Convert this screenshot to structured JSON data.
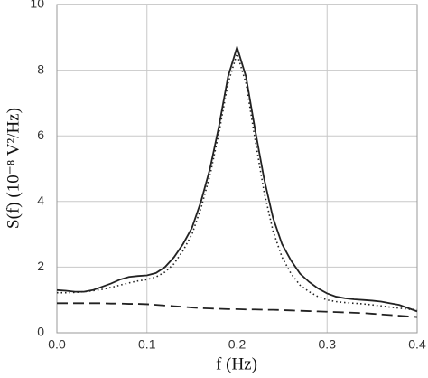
{
  "chart_data": {
    "type": "line",
    "ylabel": "S(f) (10⁻⁸ V²/Hz)",
    "xlabel": "f (Hz)",
    "x": [
      0.0,
      0.01,
      0.02,
      0.03,
      0.04,
      0.05,
      0.06,
      0.07,
      0.08,
      0.09,
      0.1,
      0.11,
      0.12,
      0.13,
      0.14,
      0.15,
      0.16,
      0.17,
      0.18,
      0.19,
      0.2,
      0.21,
      0.22,
      0.23,
      0.24,
      0.25,
      0.26,
      0.27,
      0.28,
      0.29,
      0.3,
      0.31,
      0.32,
      0.33,
      0.34,
      0.35,
      0.36,
      0.37,
      0.38,
      0.39,
      0.4
    ],
    "series": [
      {
        "color": "#222222",
        "dash": "solid",
        "values": [
          1.3,
          1.28,
          1.25,
          1.25,
          1.3,
          1.4,
          1.5,
          1.62,
          1.7,
          1.73,
          1.75,
          1.82,
          2.0,
          2.3,
          2.7,
          3.2,
          4.0,
          5.0,
          6.3,
          7.8,
          8.7,
          7.8,
          6.2,
          4.7,
          3.5,
          2.7,
          2.2,
          1.8,
          1.55,
          1.35,
          1.2,
          1.1,
          1.05,
          1.02,
          1.0,
          0.98,
          0.95,
          0.9,
          0.85,
          0.75,
          0.65
        ]
      },
      {
        "color": "#222222",
        "dash": "dotted",
        "values": [
          1.22,
          1.22,
          1.23,
          1.25,
          1.28,
          1.32,
          1.38,
          1.45,
          1.52,
          1.58,
          1.62,
          1.7,
          1.85,
          2.1,
          2.5,
          3.0,
          3.8,
          4.8,
          6.1,
          7.6,
          8.5,
          7.6,
          5.9,
          4.3,
          3.1,
          2.3,
          1.8,
          1.45,
          1.25,
          1.1,
          1.0,
          0.95,
          0.92,
          0.9,
          0.88,
          0.85,
          0.82,
          0.78,
          0.75,
          0.72,
          0.7
        ]
      },
      {
        "color": "#222222",
        "dash": "dashed",
        "values": [
          0.9,
          0.9,
          0.9,
          0.9,
          0.9,
          0.9,
          0.89,
          0.89,
          0.88,
          0.88,
          0.87,
          0.85,
          0.83,
          0.81,
          0.79,
          0.77,
          0.75,
          0.74,
          0.73,
          0.72,
          0.72,
          0.71,
          0.71,
          0.7,
          0.7,
          0.69,
          0.68,
          0.67,
          0.66,
          0.65,
          0.64,
          0.63,
          0.62,
          0.61,
          0.6,
          0.58,
          0.56,
          0.54,
          0.52,
          0.5,
          0.48
        ]
      }
    ],
    "xlim": [
      0,
      0.4
    ],
    "xticks": [
      {
        "value": 0,
        "label": "0.0"
      },
      0.1,
      0.2,
      0.3,
      0.4
    ],
    "ylim": [
      0,
      10
    ],
    "yticks": [
      0,
      2,
      4,
      6,
      8,
      10
    ],
    "grid": true
  }
}
